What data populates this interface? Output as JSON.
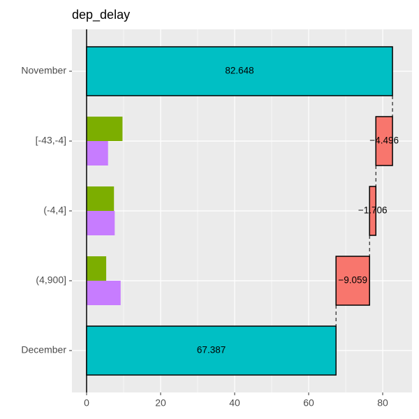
{
  "chart_data": {
    "type": "waterfall",
    "title": "dep_delay",
    "categories": [
      "November",
      "[-43,-4]",
      "(-4,4]",
      "(4,900]",
      "December"
    ],
    "values": [
      82.648,
      -4.496,
      -1.706,
      -9.059,
      67.387
    ],
    "value_labels": [
      "82.648",
      "−4.496",
      "−1.706",
      "−9.059",
      "67.387"
    ],
    "total_color": "#00BFC4",
    "change_color": "#F8766D",
    "series": [
      {
        "color": "#7CAE00",
        "values": [
          null,
          9.7,
          7.4,
          5.3,
          null
        ]
      },
      {
        "color": "#C77CFF",
        "values": [
          null,
          5.8,
          7.6,
          9.2,
          null
        ]
      }
    ],
    "xlim": [
      -3.96,
      87.92
    ],
    "xticks": [
      0,
      20,
      40,
      60,
      80
    ],
    "grid": true
  }
}
